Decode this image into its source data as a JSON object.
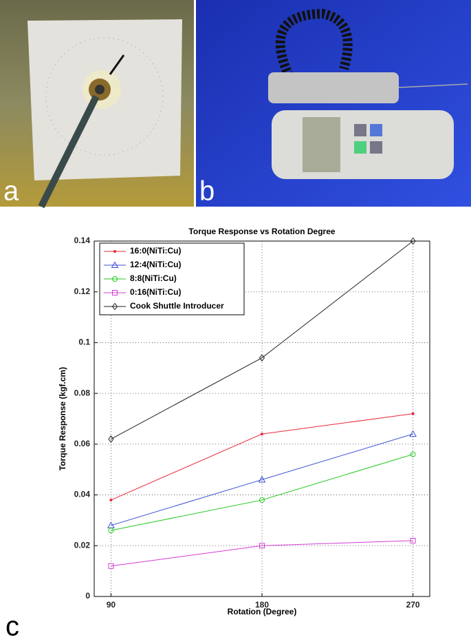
{
  "panel_labels": [
    "a",
    "b",
    "c"
  ],
  "chart_data": {
    "type": "line",
    "title": "Torque Response vs Rotation Degree",
    "xlabel": "Rotation (Degree)",
    "ylabel": "Torque Response (kgf.cm)",
    "x": [
      90,
      180,
      270
    ],
    "xlim": [
      80,
      280
    ],
    "xticks": [
      90,
      180,
      270
    ],
    "ylim": [
      0,
      0.14
    ],
    "yticks": [
      0,
      0.02,
      0.04,
      0.06,
      0.08,
      0.1,
      0.12,
      0.14
    ],
    "grid": true,
    "legend": "upper left",
    "series": [
      {
        "name": "16:0(NiTi:Cu)",
        "color": "#e8283c",
        "marker": "dot",
        "values": [
          0.038,
          0.064,
          0.072
        ]
      },
      {
        "name": "12:4(NiTi:Cu)",
        "color": "#3a4fd0",
        "marker": "triangle",
        "values": [
          0.028,
          0.046,
          0.064
        ]
      },
      {
        "name": "8:8(NiTi:Cu)",
        "color": "#22c81e",
        "marker": "circle",
        "values": [
          0.026,
          0.038,
          0.056
        ]
      },
      {
        "name": "0:16(NiTi:Cu)",
        "color": "#d23cd2",
        "marker": "square",
        "values": [
          0.012,
          0.02,
          0.022
        ]
      },
      {
        "name": "Cook Shuttle Introducer",
        "color": "#222222",
        "marker": "diamond",
        "values": [
          0.062,
          0.094,
          0.14
        ]
      }
    ]
  }
}
